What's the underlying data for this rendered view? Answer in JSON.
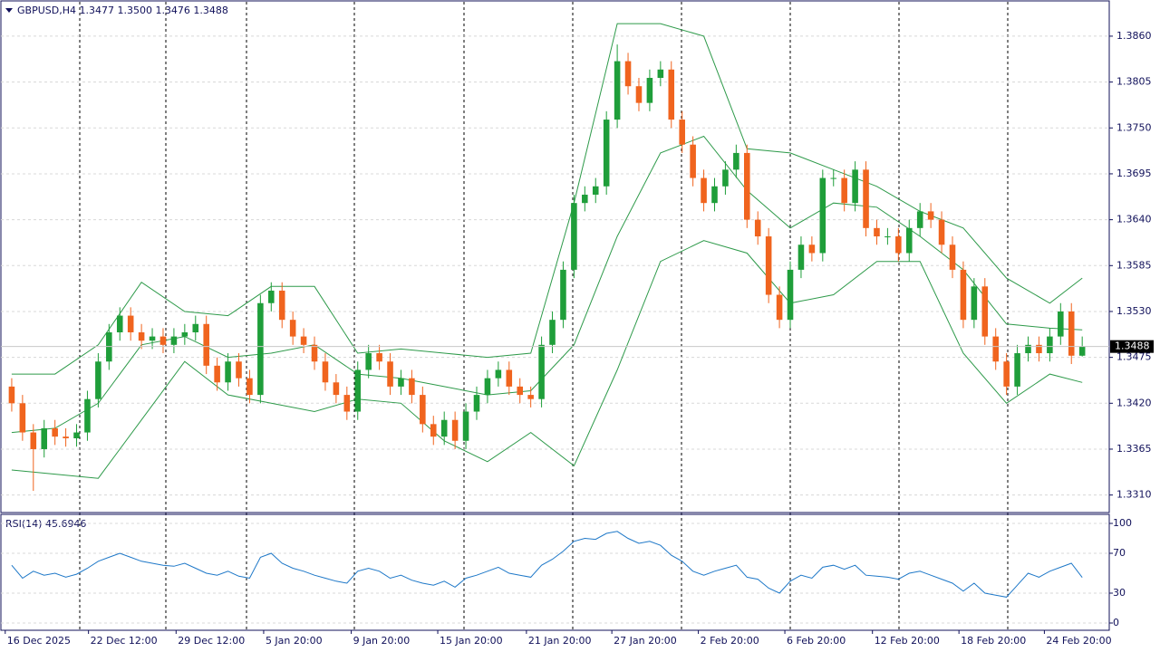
{
  "chart_data": [
    {
      "type": "candlestick",
      "title": "GBPUSD,H4  1.3477 1.3500 1.3476 1.3488",
      "open": [
        1.344,
        1.342,
        1.3385,
        1.3365,
        1.339,
        1.338,
        1.3378,
        1.3385,
        1.3425,
        1.347,
        1.3505,
        1.3525,
        1.3505,
        1.3495,
        1.35,
        1.349,
        1.35,
        1.3505,
        1.3515,
        1.3465,
        1.3445,
        1.347,
        1.345,
        1.343,
        1.354,
        1.3555,
        1.352,
        1.35,
        1.349,
        1.347,
        1.3445,
        1.343,
        1.341,
        1.346,
        1.348,
        1.347,
        1.344,
        1.345,
        1.343,
        1.3395,
        1.338,
        1.34,
        1.3375,
        1.341,
        1.343,
        1.345,
        1.346,
        1.344,
        1.343,
        1.3425,
        1.349,
        1.352,
        1.358,
        1.366,
        1.367,
        1.368,
        1.376,
        1.383,
        1.38,
        1.378,
        1.381,
        1.382,
        1.376,
        1.373,
        1.369,
        1.366,
        1.368,
        1.37,
        1.372,
        1.364,
        1.362,
        1.355,
        1.352,
        1.358,
        1.361,
        1.36,
        1.369,
        1.369,
        1.366,
        1.37,
        1.363,
        1.362,
        1.362,
        1.36,
        1.363,
        1.365,
        1.364,
        1.361,
        1.358,
        1.352,
        1.356,
        1.35,
        1.347,
        1.344,
        1.348,
        1.349,
        1.348,
        1.35,
        1.353,
        1.3477
      ],
      "high": [
        1.345,
        1.343,
        1.3395,
        1.34,
        1.34,
        1.339,
        1.3395,
        1.3435,
        1.348,
        1.3515,
        1.3535,
        1.3535,
        1.3515,
        1.351,
        1.351,
        1.351,
        1.3515,
        1.3525,
        1.3525,
        1.3475,
        1.348,
        1.348,
        1.346,
        1.355,
        1.3565,
        1.3565,
        1.353,
        1.351,
        1.35,
        1.348,
        1.3455,
        1.344,
        1.347,
        1.349,
        1.349,
        1.348,
        1.346,
        1.346,
        1.344,
        1.3405,
        1.341,
        1.341,
        1.342,
        1.344,
        1.346,
        1.347,
        1.347,
        1.345,
        1.344,
        1.35,
        1.353,
        1.359,
        1.367,
        1.368,
        1.369,
        1.377,
        1.385,
        1.384,
        1.381,
        1.382,
        1.383,
        1.383,
        1.377,
        1.374,
        1.37,
        1.369,
        1.371,
        1.373,
        1.373,
        1.365,
        1.363,
        1.356,
        1.359,
        1.362,
        1.362,
        1.37,
        1.37,
        1.37,
        1.371,
        1.371,
        1.364,
        1.363,
        1.363,
        1.364,
        1.366,
        1.366,
        1.365,
        1.362,
        1.359,
        1.357,
        1.357,
        1.351,
        1.348,
        1.349,
        1.35,
        1.35,
        1.351,
        1.354,
        1.354,
        1.35
      ],
      "low": [
        1.341,
        1.3375,
        1.3315,
        1.3355,
        1.337,
        1.3368,
        1.3368,
        1.3375,
        1.3415,
        1.346,
        1.3495,
        1.3495,
        1.3485,
        1.3485,
        1.348,
        1.348,
        1.349,
        1.3495,
        1.3455,
        1.3435,
        1.3435,
        1.344,
        1.342,
        1.342,
        1.353,
        1.351,
        1.349,
        1.348,
        1.346,
        1.3435,
        1.342,
        1.34,
        1.34,
        1.345,
        1.346,
        1.343,
        1.343,
        1.342,
        1.3385,
        1.337,
        1.337,
        1.3365,
        1.3365,
        1.34,
        1.342,
        1.344,
        1.343,
        1.342,
        1.3415,
        1.3415,
        1.348,
        1.351,
        1.357,
        1.365,
        1.366,
        1.367,
        1.375,
        1.379,
        1.377,
        1.377,
        1.38,
        1.375,
        1.372,
        1.368,
        1.365,
        1.365,
        1.367,
        1.369,
        1.363,
        1.361,
        1.354,
        1.351,
        1.351,
        1.357,
        1.359,
        1.359,
        1.368,
        1.365,
        1.365,
        1.362,
        1.361,
        1.361,
        1.359,
        1.359,
        1.362,
        1.363,
        1.36,
        1.357,
        1.351,
        1.351,
        1.349,
        1.346,
        1.343,
        1.343,
        1.347,
        1.347,
        1.347,
        1.349,
        1.3467,
        1.3476
      ],
      "close": [
        1.342,
        1.3385,
        1.3365,
        1.339,
        1.338,
        1.3378,
        1.3385,
        1.3425,
        1.347,
        1.3505,
        1.3525,
        1.3505,
        1.3495,
        1.35,
        1.349,
        1.35,
        1.3505,
        1.3515,
        1.3465,
        1.3445,
        1.347,
        1.345,
        1.343,
        1.354,
        1.3555,
        1.352,
        1.35,
        1.349,
        1.347,
        1.3445,
        1.343,
        1.341,
        1.346,
        1.348,
        1.347,
        1.344,
        1.345,
        1.343,
        1.3395,
        1.338,
        1.34,
        1.3375,
        1.341,
        1.343,
        1.345,
        1.346,
        1.344,
        1.343,
        1.3425,
        1.349,
        1.352,
        1.358,
        1.366,
        1.367,
        1.368,
        1.376,
        1.383,
        1.38,
        1.378,
        1.381,
        1.382,
        1.376,
        1.373,
        1.369,
        1.366,
        1.368,
        1.37,
        1.372,
        1.364,
        1.362,
        1.355,
        1.352,
        1.358,
        1.361,
        1.36,
        1.369,
        1.369,
        1.366,
        1.37,
        1.363,
        1.362,
        1.362,
        1.36,
        1.363,
        1.365,
        1.364,
        1.361,
        1.358,
        1.352,
        1.356,
        1.35,
        1.347,
        1.344,
        1.348,
        1.349,
        1.348,
        1.35,
        1.353,
        1.3477,
        1.3488
      ],
      "up_color": "#1f9e3a",
      "down_color": "#f0641e",
      "xlim": [
        -1,
        101.5
      ],
      "xticks": [
        {
          "value": -0.6,
          "label": "16 Dec 2025"
        },
        {
          "value": 7.1,
          "label": "22 Dec 12:00"
        },
        {
          "value": 15.2,
          "label": "29 Dec 12:00"
        },
        {
          "value": 23.3,
          "label": "5 Jan 20:00"
        },
        {
          "value": 31.4,
          "label": "9 Jan 20:00"
        },
        {
          "value": 39.4,
          "label": "15 Jan 20:00"
        },
        {
          "value": 47.6,
          "label": "21 Jan 20:00"
        },
        {
          "value": 55.5,
          "label": "27 Jan 20:00"
        },
        {
          "value": 63.5,
          "label": "2 Feb 20:00"
        },
        {
          "value": 71.5,
          "label": "6 Feb 20:00"
        },
        {
          "value": 79.6,
          "label": "12 Feb 20:00"
        },
        {
          "value": 87.6,
          "label": "18 Feb 20:00"
        },
        {
          "value": 95.5,
          "label": "24 Feb 20:00"
        }
      ],
      "ylim": [
        1.3289,
        1.3899
      ],
      "yticks": [
        {
          "value": 1.386,
          "label": "1.3860"
        },
        1.3805,
        {
          "value": 1.375,
          "label": "1.3750"
        },
        1.3695,
        {
          "value": 1.364,
          "label": "1.3640"
        },
        1.3585,
        {
          "value": 1.353,
          "label": "1.3530"
        },
        1.3475,
        {
          "value": 1.342,
          "label": "1.3420"
        },
        1.3365,
        {
          "value": 1.331,
          "label": "1.3310"
        }
      ],
      "grid": true,
      "bands": {
        "color": "#2e9a4a",
        "x": [
          0,
          4,
          8,
          12,
          16,
          20,
          24,
          28,
          32,
          36,
          40,
          44,
          48,
          52,
          56,
          60,
          64,
          68,
          72,
          76,
          80,
          84,
          88,
          92,
          96,
          99
        ],
        "upper": [
          1.3455,
          1.3455,
          1.349,
          1.3565,
          1.353,
          1.3525,
          1.356,
          1.356,
          1.348,
          1.3485,
          1.348,
          1.3475,
          1.348,
          1.366,
          1.3875,
          1.3875,
          1.386,
          1.3725,
          1.372,
          1.37,
          1.368,
          1.365,
          1.363,
          1.357,
          1.354,
          1.357
        ],
        "middle": [
          1.3385,
          1.339,
          1.342,
          1.349,
          1.35,
          1.3475,
          1.348,
          1.349,
          1.3455,
          1.345,
          1.344,
          1.343,
          1.3435,
          1.349,
          1.362,
          1.372,
          1.374,
          1.3675,
          1.363,
          1.366,
          1.3655,
          1.362,
          1.358,
          1.3515,
          1.351,
          1.3508
        ],
        "lower": [
          1.334,
          1.3335,
          1.333,
          1.34,
          1.347,
          1.343,
          1.342,
          1.341,
          1.3425,
          1.342,
          1.3375,
          1.335,
          1.3385,
          1.3345,
          1.346,
          1.359,
          1.3615,
          1.36,
          1.354,
          1.355,
          1.359,
          1.359,
          1.348,
          1.342,
          1.3455,
          1.3445
        ]
      }
    },
    {
      "type": "line",
      "title": "RSI(14) 45.6946",
      "values": [
        58,
        45,
        52,
        48,
        50,
        46,
        49,
        55,
        62,
        66,
        70,
        66,
        62,
        60,
        58,
        57,
        60,
        55,
        50,
        48,
        52,
        47,
        45,
        66,
        70,
        60,
        55,
        52,
        48,
        45,
        42,
        40,
        52,
        55,
        52,
        45,
        48,
        43,
        40,
        38,
        42,
        36,
        45,
        48,
        52,
        56,
        50,
        48,
        46,
        58,
        64,
        72,
        82,
        85,
        84,
        90,
        92,
        85,
        80,
        82,
        78,
        68,
        62,
        52,
        48,
        52,
        55,
        58,
        46,
        44,
        35,
        30,
        42,
        48,
        45,
        56,
        58,
        54,
        58,
        48,
        47,
        46,
        44,
        50,
        52,
        48,
        44,
        40,
        32,
        40,
        30,
        28,
        26,
        38,
        50,
        46,
        52,
        56,
        60,
        45.6946
      ],
      "color": "#1e78c8",
      "xlim": [
        -1,
        101.5
      ],
      "ylim": [
        0,
        100
      ],
      "yticks": [
        0,
        30,
        70,
        100
      ],
      "grid": true
    }
  ]
}
